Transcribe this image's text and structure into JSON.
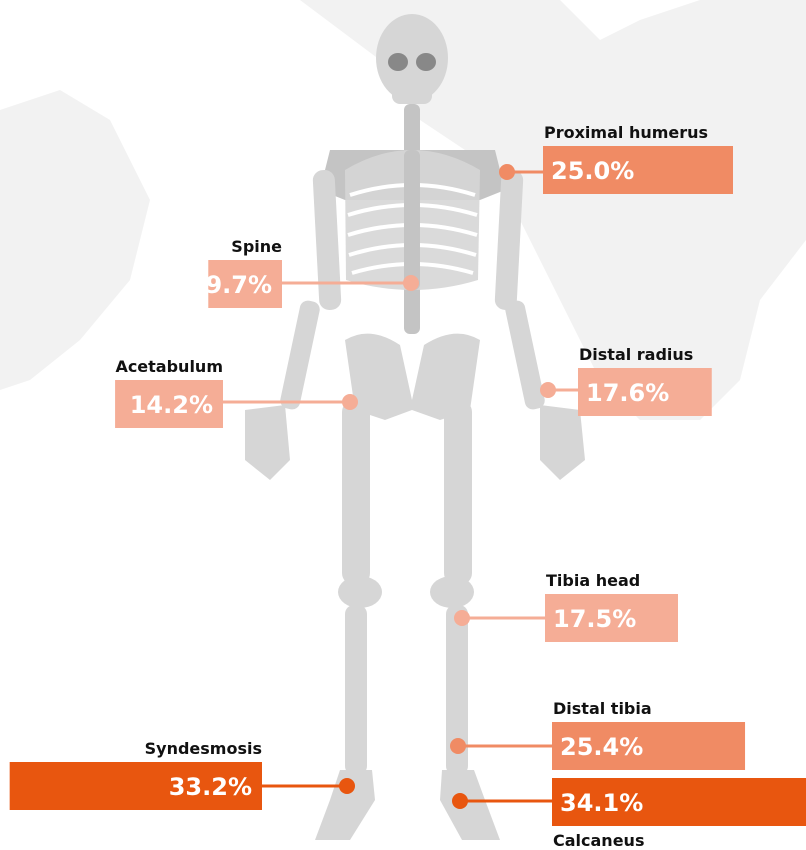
{
  "chart_data": {
    "type": "bar",
    "categories": [
      "Proximal humerus",
      "Spine",
      "Acetabulum",
      "Distal radius",
      "Tibia head",
      "Distal tibia",
      "Syndesmosis",
      "Calcaneus"
    ],
    "values": [
      25.0,
      9.7,
      14.2,
      17.6,
      17.5,
      25.4,
      33.2,
      34.1
    ],
    "value_labels": [
      "25.0%",
      "9.7%",
      "14.2%",
      "17.6%",
      "17.5%",
      "25.4%",
      "33.2%",
      "34.1%"
    ],
    "colors": [
      "#f08b64",
      "#f5ad96",
      "#f5ad96",
      "#f5ad96",
      "#f5ad96",
      "#f08b64",
      "#e8560f",
      "#e8560f"
    ]
  }
}
